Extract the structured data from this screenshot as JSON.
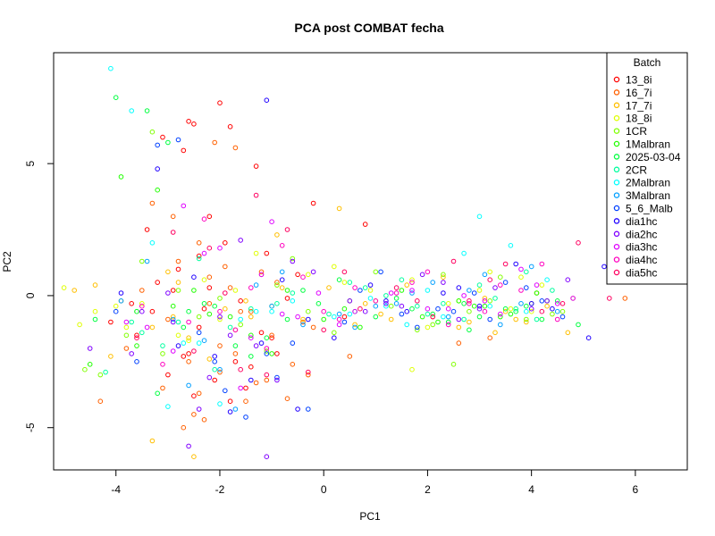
{
  "chart_data": {
    "type": "scatter",
    "title": "PCA post COMBAT fecha",
    "xlabel": "PC1",
    "ylabel": "PC2",
    "xlim": [
      -5.2,
      7.0
    ],
    "ylim": [
      -6.6,
      9.2
    ],
    "x_ticks": [
      "-4",
      "-2",
      "0",
      "2",
      "4",
      "6"
    ],
    "x_tick_values": [
      -4,
      -2,
      0,
      2,
      4,
      6
    ],
    "y_ticks": [
      "-5",
      "0",
      "5"
    ],
    "y_tick_values": [
      -5,
      0,
      5
    ],
    "legend": {
      "title": "Batch",
      "position": "top-right",
      "entries": [
        {
          "label": "13_8i",
          "color": "#FF0000"
        },
        {
          "label": "16_7i",
          "color": "#FF6000"
        },
        {
          "label": "17_7i",
          "color": "#FFBF00"
        },
        {
          "label": "18_8i",
          "color": "#DFFF00"
        },
        {
          "label": "1CR",
          "color": "#80FF00"
        },
        {
          "label": "1Malbran",
          "color": "#20FF00"
        },
        {
          "label": "2025-03-04",
          "color": "#00FF40"
        },
        {
          "label": "2CR",
          "color": "#00FF9F"
        },
        {
          "label": "2Malbran",
          "color": "#00FFFF"
        },
        {
          "label": "3Malbran",
          "color": "#009FFF"
        },
        {
          "label": "5_6_Malb",
          "color": "#0040FF"
        },
        {
          "label": "dia1hc",
          "color": "#2000FF"
        },
        {
          "label": "dia2hc",
          "color": "#8000FF"
        },
        {
          "label": "dia3hc",
          "color": "#DF00FF"
        },
        {
          "label": "dia4hc",
          "color": "#FF00BF"
        },
        {
          "label": "dia5hc",
          "color": "#FF0060"
        }
      ]
    },
    "series": [
      {
        "name": "13_8i",
        "x": [
          -2.6,
          -2.5,
          -2.0,
          -1.8,
          -3.1,
          -2.7,
          -1.3,
          -0.2,
          -2.2,
          -3.4,
          -1.9,
          -2.4,
          -1.1,
          -2.8,
          -3.2,
          -2.9,
          -0.5,
          -1.6,
          -2.3,
          -4.1,
          -3.6,
          -1.2,
          0.4,
          -2.6,
          -1.7,
          -3.0,
          -0.9,
          -2.1,
          -2.5,
          -1.4,
          -3.3,
          -2.2,
          -0.7,
          -1.0,
          -2.7,
          -1.5,
          0.8,
          -1.8,
          -2.4,
          -3.7
        ],
        "y": [
          6.6,
          6.5,
          7.3,
          6.4,
          6.0,
          5.5,
          4.9,
          3.5,
          3.0,
          2.5,
          2.0,
          1.5,
          1.6,
          1.0,
          0.5,
          0.2,
          0.8,
          -0.2,
          -0.5,
          -1.0,
          -1.5,
          -1.4,
          -0.8,
          -2.2,
          -2.5,
          -3.0,
          -2.2,
          -3.2,
          -3.8,
          -2.7,
          -0.6,
          0.3,
          -0.1,
          -1.6,
          -2.3,
          -3.5,
          2.7,
          -4.0,
          -1.2,
          -0.3
        ]
      },
      {
        "name": "16_7i",
        "x": [
          -2.1,
          -1.7,
          -2.9,
          -3.3,
          -2.4,
          -1.9,
          -1.2,
          -0.9,
          -2.8,
          -3.5,
          -2.2,
          -1.6,
          -0.4,
          -1.0,
          -2.6,
          -2.0,
          -3.1,
          -1.3,
          -0.7,
          -4.3,
          -3.8,
          -2.3,
          -1.5,
          -2.7,
          0.5,
          -0.2,
          3.2,
          5.8,
          2.6,
          -1.8,
          -1.1,
          -2.5,
          -2.0,
          -0.6,
          -3.0,
          -1.4,
          -2.2,
          -1.7,
          -0.3,
          -2.4
        ],
        "y": [
          5.8,
          5.6,
          3.0,
          3.5,
          2.0,
          1.1,
          0.9,
          0.5,
          1.3,
          0.2,
          -0.3,
          -0.6,
          -1.0,
          -1.5,
          -2.5,
          -2.9,
          -3.5,
          -3.3,
          -3.9,
          -4.0,
          -2.0,
          -4.7,
          -4.0,
          -5.0,
          -2.3,
          -1.2,
          -1.6,
          -0.1,
          -1.8,
          0.3,
          -3.2,
          -4.5,
          -1.9,
          -2.6,
          -0.9,
          -0.6,
          0.7,
          -2.2,
          -3.0,
          -3.7
        ]
      },
      {
        "name": "17_7i",
        "x": [
          -4.8,
          -4.4,
          -3.9,
          -3.6,
          -3.3,
          -2.9,
          -2.6,
          -2.2,
          -1.9,
          -1.5,
          -1.2,
          -0.8,
          -0.4,
          0.1,
          0.6,
          1.1,
          1.6,
          2.1,
          2.6,
          3.1,
          3.5,
          3.9,
          4.3,
          4.7,
          -3.3,
          -2.5,
          -1.7,
          -0.9,
          0.3,
          1.3,
          2.3,
          3.3,
          4.1,
          -4.1,
          -2.8,
          -1.4,
          0.8,
          2.8,
          3.7,
          -3.0
        ],
        "y": [
          0.2,
          0.4,
          -0.2,
          -0.6,
          -1.2,
          -0.8,
          -1.6,
          -2.4,
          -0.5,
          -0.2,
          0.8,
          0.3,
          -0.9,
          0.3,
          -1.1,
          -0.7,
          0.4,
          -0.8,
          -1.2,
          -0.1,
          -0.6,
          -1.0,
          -0.4,
          -1.4,
          -5.5,
          -6.1,
          -1.3,
          2.3,
          3.3,
          -0.9,
          0.7,
          -1.4,
          0.1,
          -2.3,
          0.5,
          -0.8,
          -0.3,
          -1.0,
          -0.9,
          0.9
        ]
      },
      {
        "name": "18_8i",
        "x": [
          -5.0,
          -4.7,
          -4.4,
          -3.5,
          -2.8,
          -2.3,
          -1.7,
          -1.0,
          -0.3,
          0.4,
          1.0,
          1.7,
          2.4,
          3.0,
          3.6,
          4.2,
          4.8,
          1.7,
          -3.8,
          -2.0,
          0.2,
          2.0,
          3.2,
          4.0,
          -1.3,
          0.9,
          2.6,
          3.8,
          -2.6,
          -4.0
        ],
        "y": [
          0.3,
          -1.1,
          -0.6,
          -0.3,
          -1.5,
          0.6,
          0.2,
          -0.4,
          0.8,
          0.5,
          -0.2,
          0.6,
          -0.3,
          0.2,
          -0.5,
          0.4,
          -0.1,
          -2.8,
          -1.2,
          -0.9,
          1.1,
          -1.2,
          0.9,
          -0.6,
          1.6,
          0.2,
          -0.2,
          0.7,
          -1.7,
          -0.4
        ]
      },
      {
        "name": "1CR",
        "x": [
          -4.3,
          -3.8,
          -3.1,
          -2.4,
          -1.6,
          -0.9,
          -0.3,
          0.5,
          1.3,
          2.1,
          2.8,
          3.4,
          4.0,
          4.6,
          -3.3,
          -2.0,
          -0.6,
          1.0,
          2.5,
          3.9,
          -4.6,
          -3.5,
          -1.1,
          1.8,
          3.2,
          4.4,
          -2.8,
          0.2,
          2.3
        ],
        "y": [
          -3.0,
          -1.5,
          -2.2,
          -0.8,
          -1.1,
          0.4,
          -0.6,
          -0.2,
          -0.4,
          -1.1,
          -0.6,
          0.7,
          -0.3,
          -0.6,
          6.2,
          -0.1,
          1.4,
          0.9,
          -2.6,
          -0.9,
          -2.8,
          1.3,
          -2.1,
          -1.3,
          -0.2,
          -0.7,
          0.2,
          -1.4,
          0.8
        ]
      },
      {
        "name": "1Malbran",
        "x": [
          -4.5,
          -3.6,
          -2.9,
          -2.2,
          -1.4,
          -0.7,
          0.0,
          0.7,
          1.5,
          2.2,
          2.9,
          3.6,
          4.3,
          -3.2,
          -1.8,
          0.4,
          1.9,
          3.1,
          4.1,
          -3.9,
          -1.0,
          2.6,
          3.4,
          -2.5
        ],
        "y": [
          -2.6,
          -1.9,
          -0.4,
          -0.7,
          -1.5,
          0.2,
          -0.9,
          -1.2,
          0.2,
          -1.0,
          -0.4,
          -0.7,
          -0.2,
          4.0,
          -0.8,
          -0.5,
          -0.8,
          -0.4,
          0.1,
          4.5,
          -2.2,
          -0.2,
          -0.8,
          0.2
        ]
      },
      {
        "name": "2025-03-04",
        "x": [
          -4.0,
          -3.4,
          -2.7,
          -2.1,
          -1.4,
          -0.7,
          -0.1,
          0.6,
          1.4,
          2.1,
          2.8,
          3.5,
          4.2,
          4.9,
          -3.0,
          -1.7,
          -0.4,
          1.0,
          2.4,
          3.7,
          -4.4,
          -2.3,
          0.3,
          1.7,
          3.0,
          4.5,
          -3.6,
          -1.1,
          2.7,
          3.9,
          -3.2,
          -2.6
        ],
        "y": [
          7.5,
          7.0,
          -1.2,
          -0.4,
          -2.3,
          -0.9,
          -0.3,
          -0.6,
          -0.1,
          -0.7,
          -1.3,
          -0.5,
          -0.9,
          -1.1,
          5.8,
          -1.9,
          0.2,
          -0.8,
          -1.0,
          -0.6,
          -0.9,
          -0.3,
          0.6,
          -0.5,
          -0.8,
          -0.2,
          -0.6,
          -1.6,
          -0.3,
          -0.4,
          -3.7,
          -0.6
        ]
      },
      {
        "name": "2CR",
        "x": [
          -4.2,
          -3.5,
          -2.8,
          -2.1,
          -1.4,
          -0.6,
          0.1,
          0.8,
          1.5,
          2.3,
          3.0,
          3.7,
          4.4,
          -3.1,
          -1.8,
          0.5,
          2.0,
          3.3,
          -2.4,
          1.2,
          2.7,
          3.9,
          -3.7,
          -0.9,
          1.8,
          4.1
        ],
        "y": [
          -2.9,
          -1.4,
          -1.0,
          -2.8,
          -0.5,
          0.1,
          -0.7,
          0.3,
          0.6,
          -0.3,
          0.4,
          -0.5,
          0.2,
          -1.9,
          -1.2,
          0.5,
          -0.7,
          -0.1,
          1.4,
          0.0,
          -0.9,
          0.9,
          -1.0,
          -0.3,
          -0.4,
          -0.9
        ]
      },
      {
        "name": "2Malbran",
        "x": [
          -4.1,
          -3.7,
          -3.3,
          -2.7,
          -2.0,
          -1.3,
          -0.6,
          0.2,
          0.9,
          1.6,
          2.3,
          3.0,
          3.6,
          4.3,
          -2.4,
          -1.0,
          0.5,
          2.0,
          3.2,
          -3.0,
          -1.6,
          1.2,
          2.7,
          3.9
        ],
        "y": [
          8.6,
          7.0,
          2.0,
          -1.8,
          -4.1,
          -0.6,
          -0.2,
          -0.8,
          -0.1,
          -1.1,
          -0.8,
          3.0,
          1.9,
          0.6,
          -1.8,
          -0.6,
          -0.7,
          0.2,
          -0.4,
          -4.2,
          -0.9,
          -0.4,
          1.6,
          -0.6
        ]
      },
      {
        "name": "3Malbran",
        "x": [
          -3.4,
          -2.9,
          -2.3,
          -1.7,
          -1.0,
          -0.4,
          0.3,
          1.0,
          1.7,
          2.4,
          3.1,
          3.8,
          4.5,
          -3.9,
          -2.0,
          -1.3,
          0.6,
          2.1,
          3.4,
          -2.6,
          -0.8,
          1.4,
          2.8,
          4.0
        ],
        "y": [
          1.3,
          -0.9,
          -1.7,
          -4.3,
          -0.4,
          -1.1,
          -0.7,
          -0.4,
          0.1,
          -0.8,
          0.8,
          -0.3,
          -0.6,
          -0.2,
          -2.8,
          0.4,
          -1.2,
          0.5,
          -1.1,
          -3.4,
          0.9,
          -0.3,
          0.2,
          1.1
        ]
      },
      {
        "name": "5_6_Malb",
        "x": [
          -3.2,
          -2.8,
          -2.1,
          -1.5,
          -0.9,
          -0.3,
          0.4,
          1.1,
          1.8,
          2.5,
          3.2,
          3.9,
          4.6,
          -3.6,
          -2.4,
          -1.1,
          0.7,
          2.2,
          3.5,
          -1.9,
          1.5,
          2.9,
          4.2,
          -4.0,
          -0.6
        ],
        "y": [
          5.7,
          5.9,
          -2.5,
          -4.6,
          -3.1,
          -4.3,
          -1.0,
          0.9,
          -1.2,
          -0.6,
          -0.9,
          0.3,
          -0.8,
          -2.5,
          -1.4,
          -2.2,
          0.2,
          -0.5,
          0.5,
          -3.6,
          -0.7,
          0.1,
          -0.2,
          -0.6,
          -1.8
        ]
      },
      {
        "name": "dia1hc",
        "x": [
          -1.1,
          -3.2,
          -2.5,
          -1.8,
          -1.2,
          -0.5,
          0.2,
          0.9,
          1.6,
          2.3,
          3.0,
          3.7,
          4.4,
          5.1,
          -3.9,
          -2.1,
          -0.8,
          1.2,
          2.6,
          4.0,
          -1.4,
          -0.3,
          -2.8,
          5.4
        ],
        "y": [
          7.4,
          4.8,
          0.7,
          -4.4,
          -1.8,
          -4.3,
          -1.6,
          0.4,
          -0.6,
          0.1,
          -0.4,
          1.2,
          -0.5,
          -1.6,
          0.1,
          -2.3,
          0.6,
          -0.2,
          0.3,
          -0.3,
          -3.2,
          -0.9,
          -1.9,
          1.1
        ]
      },
      {
        "name": "dia2hc",
        "x": [
          -2.6,
          -1.1,
          -3.5,
          -2.9,
          -2.2,
          -1.6,
          -0.9,
          -0.2,
          0.5,
          1.2,
          1.9,
          2.6,
          3.3,
          4.0,
          4.7,
          -3.7,
          -2.0,
          -0.6,
          1.5,
          3.0,
          4.3,
          -2.4,
          -1.3,
          0.8,
          2.3,
          -4.5,
          -3.0,
          -1.8
        ],
        "y": [
          -5.7,
          -6.1,
          -0.6,
          -1.0,
          -3.1,
          2.1,
          -3.2,
          0.9,
          -0.2,
          -0.3,
          0.8,
          -0.9,
          0.3,
          -0.5,
          0.6,
          -2.2,
          -0.8,
          1.3,
          -0.4,
          -0.5,
          -0.2,
          -4.3,
          -1.9,
          -0.6,
          0.5,
          -2.0,
          0.1,
          -1.5
        ]
      },
      {
        "name": "dia3hc",
        "x": [
          -2.7,
          -2.0,
          -1.4,
          -0.8,
          -0.1,
          0.6,
          1.3,
          2.0,
          2.7,
          3.4,
          4.1,
          4.8,
          -3.4,
          -2.3,
          -1.0,
          0.3,
          1.7,
          3.1,
          4.5,
          -3.8,
          -1.6,
          -0.5,
          2.4,
          3.8,
          -2.9,
          -1.2
        ],
        "y": [
          3.4,
          1.8,
          -1.6,
          -0.7,
          0.1,
          -0.6,
          0.1,
          -0.5,
          0.0,
          -0.7,
          0.4,
          -0.1,
          -1.2,
          1.6,
          2.8,
          -1.1,
          0.2,
          -0.2,
          -0.3,
          -1.0,
          -3.5,
          -0.8,
          -0.5,
          1.0,
          -2.1,
          0.8
        ]
      },
      {
        "name": "dia4hc",
        "x": [
          -2.3,
          -1.7,
          -1.1,
          -0.4,
          0.3,
          1.0,
          1.7,
          2.4,
          3.1,
          3.8,
          4.5,
          -3.1,
          -2.0,
          -0.8,
          0.6,
          2.0,
          3.4,
          -3.5,
          -2.6,
          -1.4,
          0.0,
          1.4,
          2.8,
          4.2
        ],
        "y": [
          2.9,
          -1.3,
          -2.0,
          0.7,
          -0.9,
          -0.2,
          0.5,
          -1.1,
          -0.6,
          0.2,
          -0.9,
          -2.6,
          -0.6,
          1.9,
          0.3,
          0.9,
          0.4,
          -0.4,
          -1.0,
          0.3,
          -0.6,
          0.1,
          -0.3,
          1.2
        ]
      },
      {
        "name": "dia5hc",
        "x": [
          -2.9,
          -2.2,
          -1.6,
          -1.3,
          -0.7,
          0.0,
          0.7,
          1.4,
          2.1,
          2.8,
          3.5,
          4.2,
          4.9,
          5.5,
          -3.6,
          -2.5,
          -1.1,
          0.4,
          1.8,
          3.2,
          4.6,
          -1.9,
          -0.3,
          2.5
        ],
        "y": [
          2.4,
          1.8,
          -2.8,
          3.8,
          2.5,
          -1.3,
          -0.5,
          0.3,
          -0.8,
          -0.2,
          1.2,
          -0.6,
          2.0,
          -0.1,
          -1.6,
          -2.1,
          -3.0,
          0.9,
          -0.2,
          0.6,
          -0.3,
          0.1,
          -2.9,
          1.3
        ]
      }
    ]
  }
}
